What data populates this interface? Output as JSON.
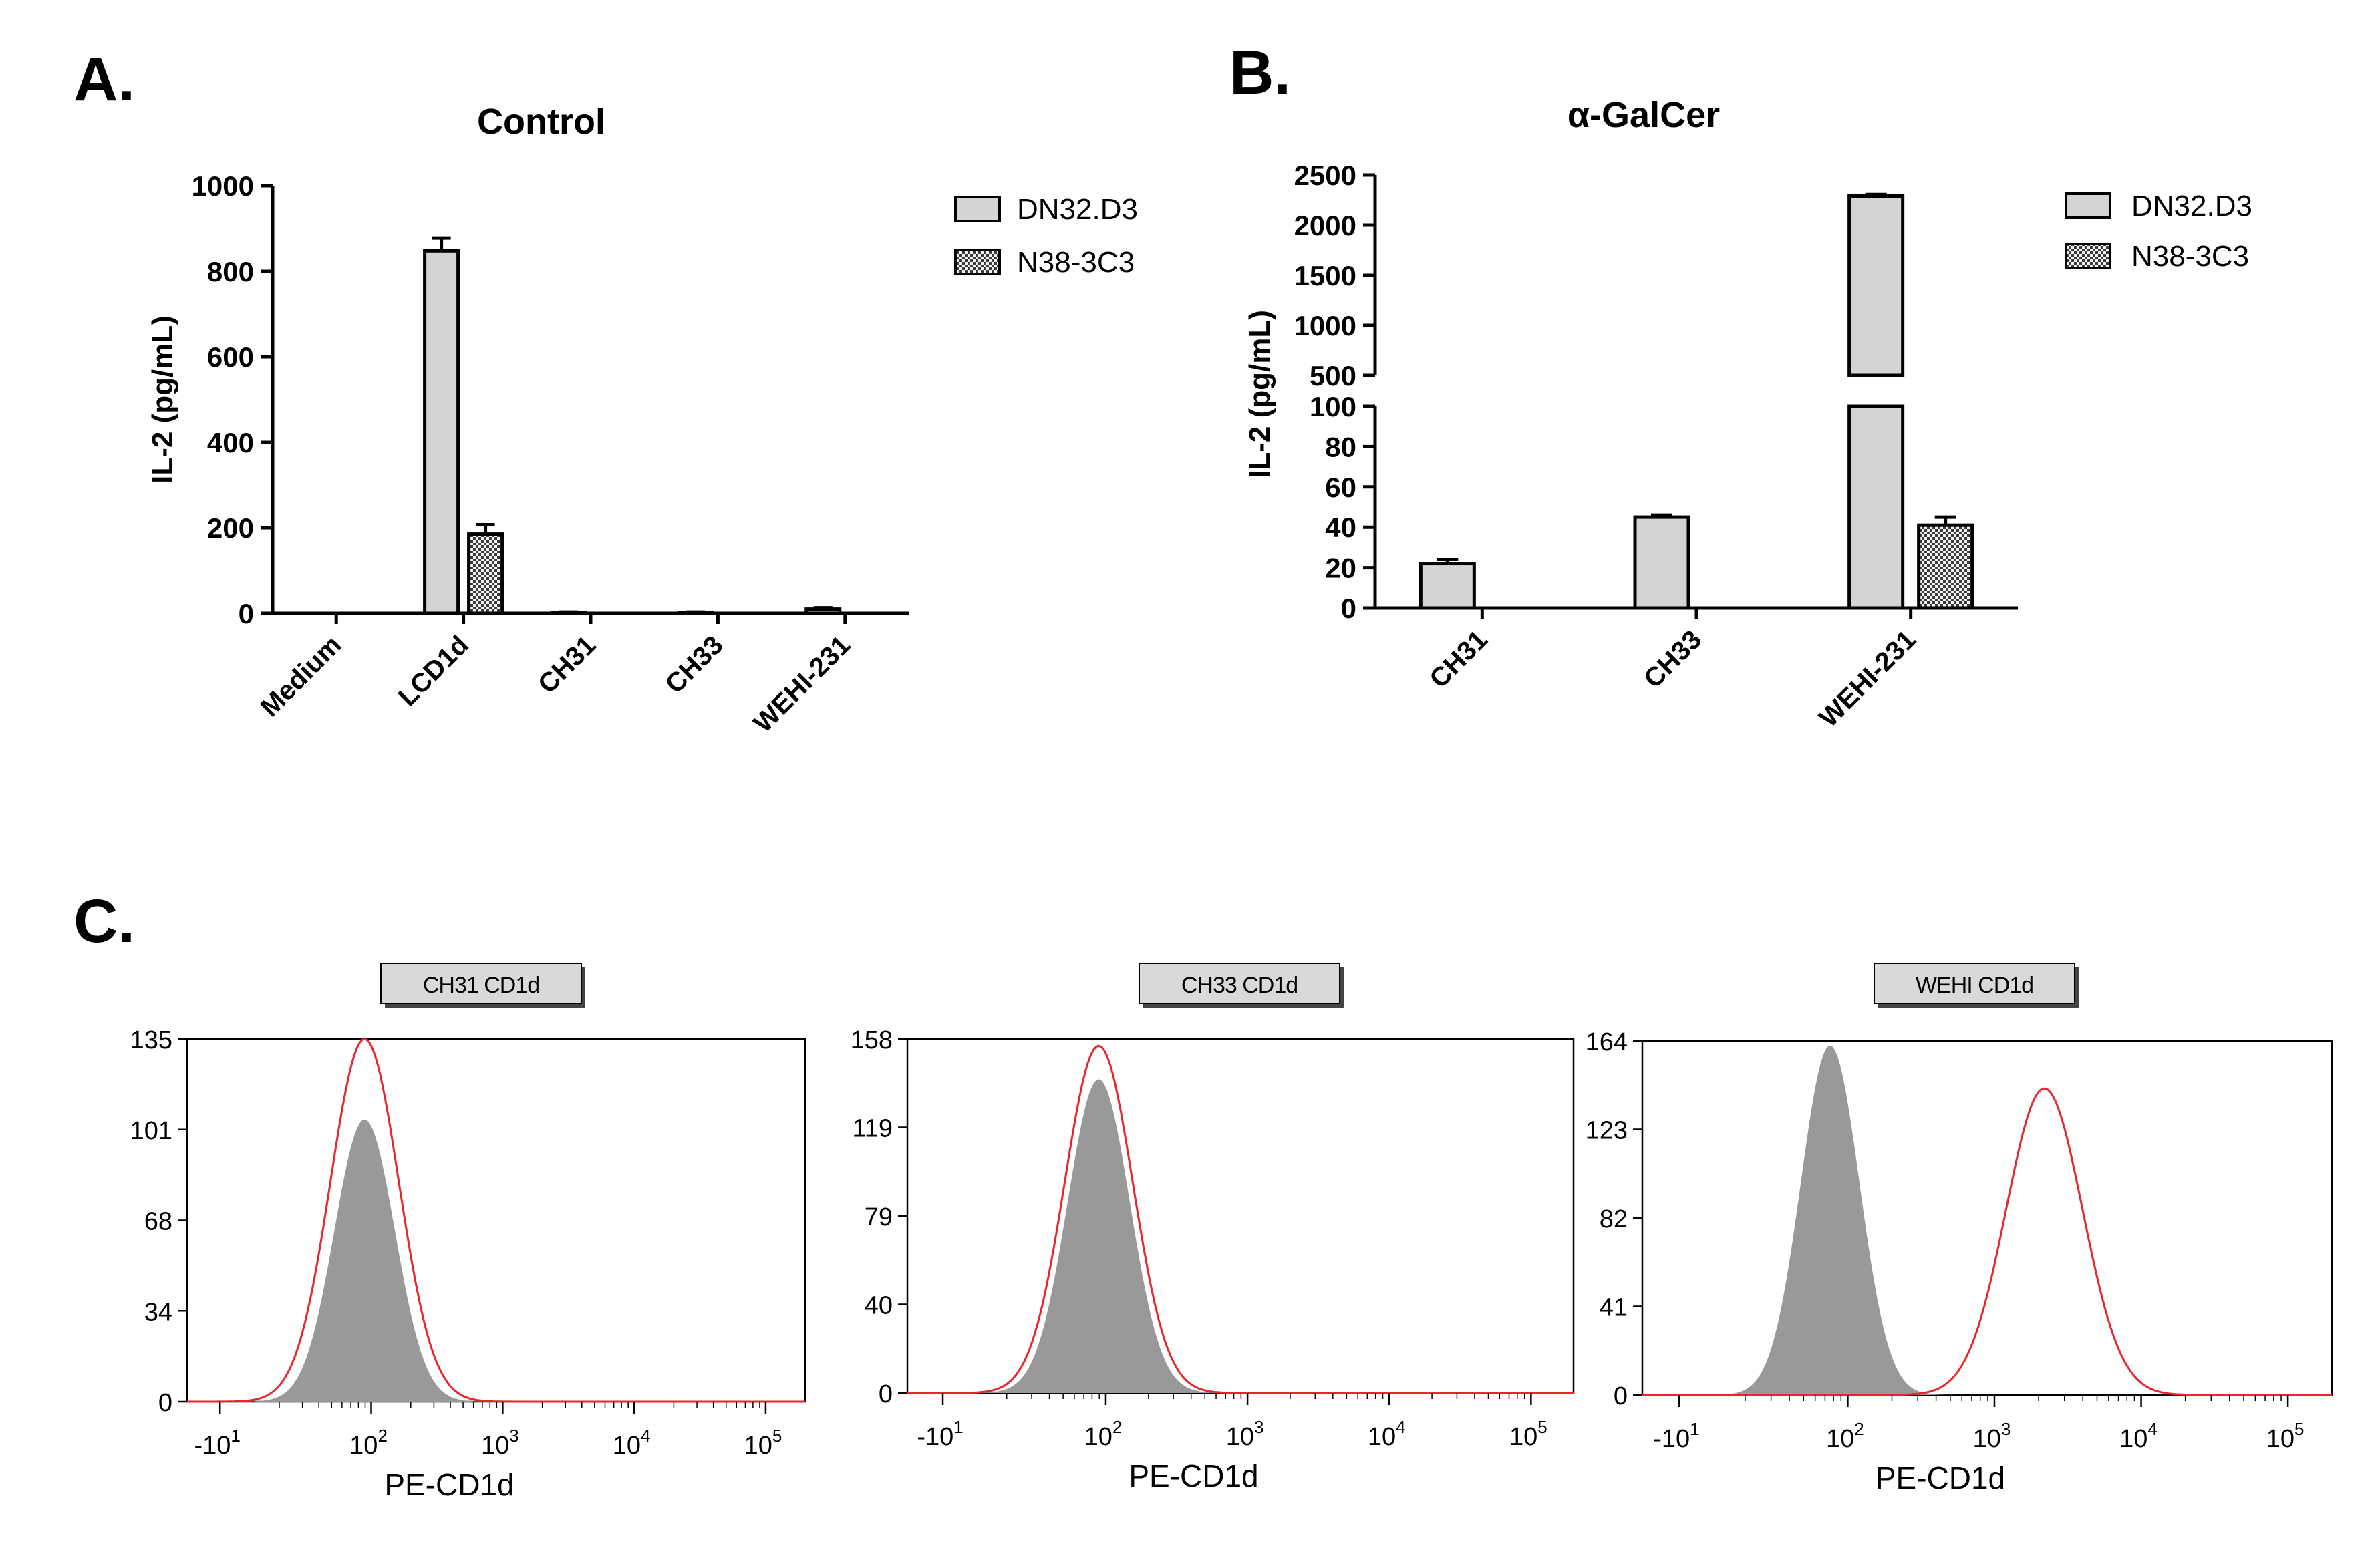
{
  "chart_data": [
    {
      "panel": "A.",
      "type": "bar",
      "title": "Control",
      "ylabel": "IL-2 (pg/mL)",
      "xlabel": "",
      "ylim": [
        0,
        1000
      ],
      "yticks": [
        {
          "value": 0,
          "label": "0"
        },
        {
          "value": 200,
          "label": "200"
        },
        {
          "value": 400,
          "label": "400"
        },
        {
          "value": 600,
          "label": "600"
        },
        {
          "value": 800,
          "label": "800"
        },
        {
          "value": 1000,
          "label": "1000"
        }
      ],
      "categories": [
        "Medium",
        "LCD1d",
        "CH31",
        "CH33",
        "WEHI-231"
      ],
      "series": [
        {
          "name": "DN32.D3",
          "fill": "#d4d4d4",
          "values": [
            0,
            848,
            2,
            2,
            10
          ],
          "errors": [
            0,
            30,
            1,
            1,
            3
          ]
        },
        {
          "name": "N38-3C3",
          "fill": "checker",
          "values": [
            0,
            185,
            0,
            0,
            0
          ],
          "errors": [
            0,
            22,
            0,
            0,
            0
          ]
        }
      ],
      "legend": "right"
    },
    {
      "panel": "B.",
      "type": "bar",
      "title": "α-GalCer",
      "ylabel": "IL-2 (pg/mL)",
      "xlabel": "",
      "axis_break": {
        "lower": [
          0,
          100
        ],
        "upper": [
          500,
          2500
        ]
      },
      "yticks_lower": [
        {
          "value": 0,
          "label": "0"
        },
        {
          "value": 20,
          "label": "20"
        },
        {
          "value": 40,
          "label": "40"
        },
        {
          "value": 60,
          "label": "60"
        },
        {
          "value": 80,
          "label": "80"
        },
        {
          "value": 100,
          "label": "100"
        }
      ],
      "yticks_upper": [
        {
          "value": 500,
          "label": "500"
        },
        {
          "value": 1000,
          "label": "1000"
        },
        {
          "value": 1500,
          "label": "1500"
        },
        {
          "value": 2000,
          "label": "2000"
        },
        {
          "value": 2500,
          "label": "2500"
        }
      ],
      "categories": [
        "CH31",
        "CH33",
        "WEHI-231"
      ],
      "series": [
        {
          "name": "DN32.D3",
          "fill": "#d4d4d4",
          "values": [
            22,
            45,
            2290
          ],
          "errors": [
            2,
            1,
            15
          ]
        },
        {
          "name": "N38-3C3",
          "fill": "checker",
          "values": [
            0,
            0,
            41
          ],
          "errors": [
            0,
            0,
            4
          ]
        }
      ],
      "legend": "right"
    },
    {
      "panel": "C.",
      "type": "histogram",
      "xlabel": "PE-CD1d",
      "xticks": [
        {
          "value": -10,
          "base": "-10",
          "exp": "1"
        },
        {
          "value": 100,
          "base": "10",
          "exp": "2"
        },
        {
          "value": 1000,
          "base": "10",
          "exp": "3"
        },
        {
          "value": 10000,
          "base": "10",
          "exp": "4"
        },
        {
          "value": 100000,
          "base": "10",
          "exp": "5"
        }
      ],
      "gray_fill": "#999999",
      "red_line": "#e8262b",
      "plots": [
        {
          "title": "CH31 CD1d",
          "ymax": 135,
          "yticks": [
            "0",
            "34",
            "68",
            "101",
            "135"
          ],
          "gray": {
            "peak_log": 1.95,
            "width": 0.23,
            "height": 105
          },
          "red": {
            "peak_log": 1.95,
            "width": 0.26,
            "height": 135
          }
        },
        {
          "title": "CH33 CD1d",
          "ymax": 158,
          "yticks": [
            "0",
            "40",
            "79",
            "119",
            "158"
          ],
          "gray": {
            "peak_log": 1.95,
            "width": 0.22,
            "height": 140
          },
          "red": {
            "peak_log": 1.95,
            "width": 0.24,
            "height": 155
          }
        },
        {
          "title": "WEHI CD1d",
          "ymax": 164,
          "yticks": [
            "0",
            "41",
            "82",
            "123",
            "164"
          ],
          "gray": {
            "peak_log": 1.88,
            "width": 0.2,
            "height": 162
          },
          "red": {
            "peak_log": 3.34,
            "width": 0.26,
            "height": 142
          }
        }
      ]
    }
  ]
}
